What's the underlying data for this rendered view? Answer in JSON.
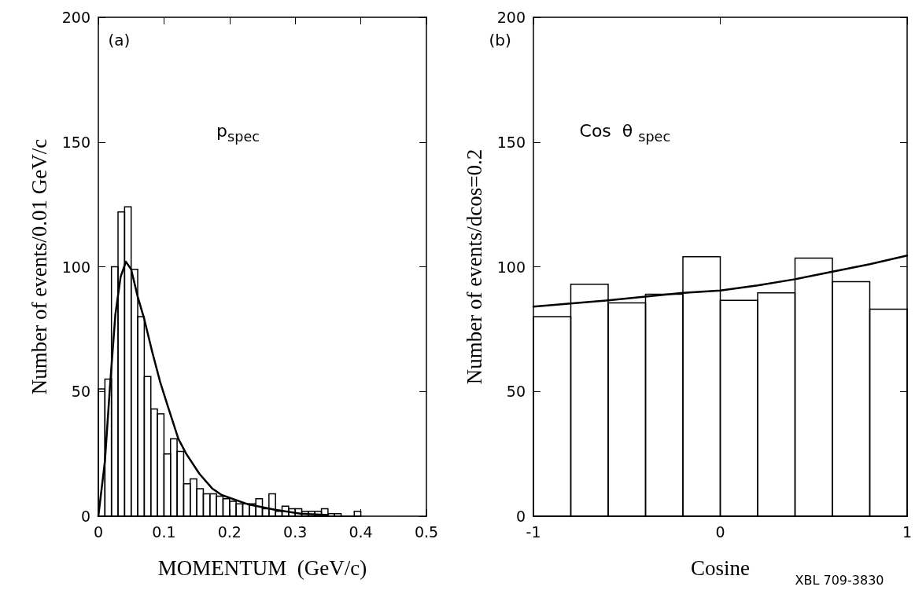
{
  "chart_data": [
    {
      "type": "histogram",
      "xlabel": "MOMENTUM  (GeV/c)",
      "ylabel": "Number of events/0.01 GeV/c",
      "color": "#000000",
      "bins": [
        0,
        0.01,
        0.02,
        0.03,
        0.04,
        0.05,
        0.06,
        0.07,
        0.08,
        0.09,
        0.1,
        0.11,
        0.12,
        0.13,
        0.14,
        0.15,
        0.16,
        0.17,
        0.18,
        0.19,
        0.2,
        0.21,
        0.22,
        0.23,
        0.24,
        0.25,
        0.26,
        0.27,
        0.28,
        0.29,
        0.3,
        0.31,
        0.32,
        0.33,
        0.34,
        0.35,
        0.36,
        0.37,
        0.38,
        0.39,
        0.4
      ],
      "values": [
        51,
        55,
        100,
        122,
        124,
        99,
        80,
        56,
        43,
        41,
        25,
        31,
        26,
        13,
        15,
        11,
        9,
        9,
        8,
        7,
        6,
        5,
        5,
        5,
        7,
        3,
        9,
        2,
        4,
        3,
        3,
        2,
        2,
        2,
        3,
        1,
        1,
        0,
        0,
        2
      ],
      "series": [
        {
          "type": "line",
          "color": "#000000",
          "x": [
            0,
            0.01,
            0.018,
            0.026,
            0.034,
            0.042,
            0.05,
            0.06,
            0.07,
            0.082,
            0.094,
            0.106,
            0.122,
            0.134,
            0.154,
            0.174,
            0.188,
            0.229,
            0.269,
            0.308,
            0.35
          ],
          "values": [
            0,
            22,
            53,
            81,
            96,
            102,
            99,
            88,
            79,
            66,
            54,
            44,
            31,
            25,
            17,
            11,
            8.5,
            4.7,
            2.6,
            1,
            0.5
          ]
        }
      ],
      "xlim": [
        0,
        0.5
      ],
      "xticks": [
        0,
        0.1,
        0.2,
        0.3,
        0.4,
        0.5
      ],
      "ylim": [
        0,
        200
      ],
      "yticks": [
        0,
        50,
        100,
        150,
        200
      ],
      "grid": false,
      "annotations": [
        "(a)",
        "p$_{spec}$"
      ]
    },
    {
      "type": "histogram",
      "xlabel": "Cosine",
      "ylabel": "Number of events/dcos=0.2",
      "color": "#000000",
      "bins": [
        -1,
        -0.8,
        -0.6,
        -0.4,
        -0.2,
        0,
        0.2,
        0.4,
        0.6,
        0.8,
        1
      ],
      "values": [
        80,
        93,
        85.5,
        89,
        104,
        86.5,
        89.5,
        103.5,
        94,
        83
      ],
      "series": [
        {
          "type": "line",
          "color": "#000000",
          "x": [
            -1,
            -0.6,
            -0.2,
            0,
            0.2,
            0.4,
            0.6,
            0.8,
            1
          ],
          "values": [
            84,
            86.5,
            89.5,
            90.5,
            92.5,
            95,
            98,
            101,
            104.5
          ]
        }
      ],
      "xlim": [
        -1,
        1
      ],
      "xticks": [
        -1,
        0,
        1
      ],
      "ylim": [
        0,
        200
      ],
      "yticks": [
        0,
        50,
        100,
        150,
        200
      ],
      "grid": false,
      "annotations": [
        "(b)",
        "Cos  θ $_{spec}$",
        "XBL 709-3830"
      ]
    }
  ]
}
